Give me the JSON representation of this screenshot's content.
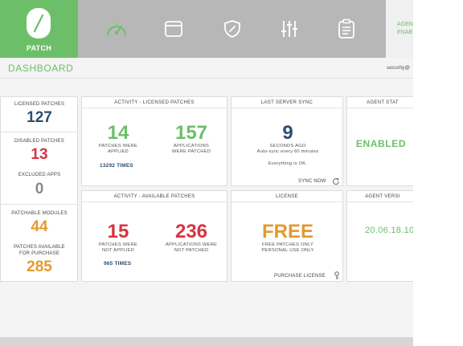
{
  "brand": {
    "name": "PATCH"
  },
  "top_tab": {
    "line1": "AGEN",
    "line2": "ENAB"
  },
  "header": {
    "title": "DASHBOARD",
    "user": "security@"
  },
  "stats": {
    "licensed_patches": {
      "label": "LICENSED PATCHES",
      "value": "127"
    },
    "disabled_patches": {
      "label": "DISABLED PATCHES",
      "value": "13"
    },
    "excluded_apps": {
      "label": "EXCLUDED APPS",
      "value": "0"
    },
    "patchable_modules": {
      "label": "PATCHABLE MODULES",
      "value": "44"
    },
    "patches_available": {
      "label_line1": "PATCHES AVAILABLE",
      "label_line2": "FOR PURCHASE",
      "value": "285"
    }
  },
  "activity_licensed": {
    "title": "ACTIVITY - LICENSED PATCHES",
    "applied": {
      "value": "14",
      "label_line1": "PATCHES WERE",
      "label_line2": "APPLIED"
    },
    "apps": {
      "value": "157",
      "label_line1": "APPLICATIONS",
      "label_line2": "WERE PATCHED"
    },
    "times": "13292 TIMES"
  },
  "activity_available": {
    "title": "ACTIVITY - AVAILABLE PATCHES",
    "not_applied": {
      "value": "15",
      "label_line1": "PATCHES WERE",
      "label_line2": "NOT APPLIED"
    },
    "apps": {
      "value": "236",
      "label_line1": "APPLICATIONS WERE",
      "label_line2": "NOT PATCHED"
    },
    "times": "965 TIMES"
  },
  "server_sync": {
    "title": "LAST SERVER SYNC",
    "value": "9",
    "unit": "SECONDS AGO",
    "note": "Auto-sync every 60 minutes",
    "status": "Everything is OK.",
    "action": "SYNC NOW"
  },
  "license": {
    "title": "LICENSE",
    "value": "FREE",
    "line1": "FREE PATCHES ONLY",
    "line2": "PERSONAL USE ONLY",
    "action": "PURCHASE LICENSE"
  },
  "agent_status": {
    "title": "AGENT STAT",
    "value": "ENABLED"
  },
  "agent_version": {
    "title": "AGENT VERSI",
    "value": "20.06.18.10"
  },
  "icons": [
    "gauge-icon",
    "window-icon",
    "shield-icon",
    "sliders-icon",
    "clipboard-icon",
    "refresh-icon",
    "key-icon"
  ],
  "colors": {
    "brand_green": "#6cbf68",
    "navy": "#2d4d6e",
    "red": "#d8343f",
    "orange": "#e39a31",
    "gray": "#8a8a8a"
  }
}
